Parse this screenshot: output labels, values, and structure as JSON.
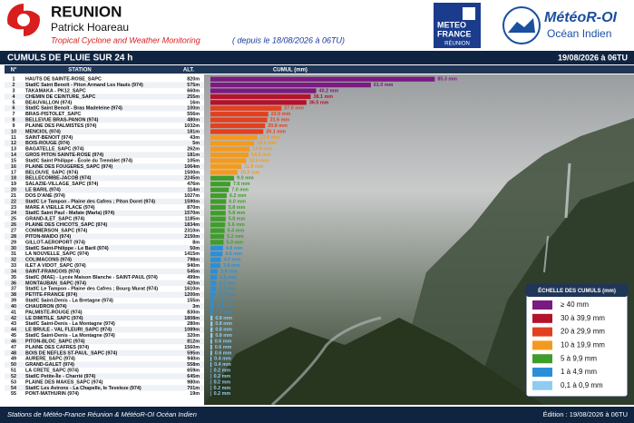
{
  "header": {
    "title": "REUNION",
    "author": "Patrick Hoareau",
    "subtitle": "Tropical Cyclone and Weather Monitoring",
    "period": "( depuis le 18/08/2026 à 06TU)",
    "logo_left": [
      "METEO",
      "FRANCE",
      "RÉUNION"
    ],
    "logo_right": [
      "MétéoR-OI",
      "Océan Indien"
    ]
  },
  "table": {
    "title": "CUMULS DE PLUIE SUR 24 h",
    "date": "19/08/2026 à 06TU",
    "columns": [
      "N°",
      "STATION",
      "ALT.",
      "CUMUL (mm)"
    ],
    "rows": [
      {
        "n": "1",
        "station": "HAUTS DE SAINTE-ROSE_SAPC",
        "alt": "820m",
        "value": 85.3,
        "value_label": "85.3 mm",
        "color": "#7b1a80"
      },
      {
        "n": "2",
        "station": "StatIC Saint Benoît - Piton Armand Les Hauts (974)",
        "alt": "575m",
        "value": 61.0,
        "value_label": "61.0 mm",
        "color": "#7b1a80"
      },
      {
        "n": "3",
        "station": "TAKAMAKA - PK12_SAPC",
        "alt": "660m",
        "value": 40.2,
        "value_label": "40.2 mm",
        "color": "#7b1a80"
      },
      {
        "n": "4",
        "station": "CHEMIN DE CEINTURE_SAPC",
        "alt": "255m",
        "value": 38.1,
        "value_label": "38.1 mm",
        "color": "#b5122b"
      },
      {
        "n": "5",
        "station": "BEAUVALLON (974)",
        "alt": "16m",
        "value": 36.5,
        "value_label": "36.5 mm",
        "color": "#b5122b"
      },
      {
        "n": "6",
        "station": "StatIC Saint Benoît - Bras Madeleine (974)",
        "alt": "100m",
        "value": 27.0,
        "value_label": "27.0 mm",
        "color": "#e2401f"
      },
      {
        "n": "7",
        "station": "BRAS-PISTOLET_SAPC",
        "alt": "556m",
        "value": 22.0,
        "value_label": "22.0 mm",
        "color": "#e2401f"
      },
      {
        "n": "8",
        "station": "BELLEVUE BRAS-PANON (974)",
        "alt": "480m",
        "value": 21.6,
        "value_label": "21.6 mm",
        "color": "#e2401f"
      },
      {
        "n": "9",
        "station": "PLAINE DES PALMISTES (974)",
        "alt": "1032m",
        "value": 20.8,
        "value_label": "20.8 mm",
        "color": "#e2401f"
      },
      {
        "n": "10",
        "station": "MENCIOL (974)",
        "alt": "181m",
        "value": 20.1,
        "value_label": "20.1 mm",
        "color": "#e2401f"
      },
      {
        "n": "11",
        "station": "SAINT-BENOIT (974)",
        "alt": "43m",
        "value": 17.8,
        "value_label": "17.8 mm",
        "color": "#f39a1e"
      },
      {
        "n": "12",
        "station": "BOIS-ROUGE (974)",
        "alt": "5m",
        "value": 16.6,
        "value_label": "16.6 mm",
        "color": "#f39a1e"
      },
      {
        "n": "13",
        "station": "BAGATELLE_SAPC (974)",
        "alt": "262m",
        "value": 14.9,
        "value_label": "14.9 mm",
        "color": "#f39a1e"
      },
      {
        "n": "14",
        "station": "GROS PITON SAINTE-ROSE (974)",
        "alt": "181m",
        "value": 14.5,
        "value_label": "14.5 mm",
        "color": "#f39a1e"
      },
      {
        "n": "15",
        "station": "StatIC Saint Philippe - École du Tremblet (974)",
        "alt": "105m",
        "value": 13.6,
        "value_label": "13.6 mm",
        "color": "#f39a1e"
      },
      {
        "n": "16",
        "station": "PLAINE DES FOUGERES_SAPC (974)",
        "alt": "1064m",
        "value": 11.8,
        "value_label": "11.8 mm",
        "color": "#f39a1e"
      },
      {
        "n": "17",
        "station": "BELOUVE_SAPC (974)",
        "alt": "1500m",
        "value": 10.3,
        "value_label": "10.3 mm",
        "color": "#f39a1e"
      },
      {
        "n": "18",
        "station": "BELLECOMBE-JACOB (974)",
        "alt": "2245m",
        "value": 9.0,
        "value_label": "9.0 mm",
        "color": "#3f9d2c"
      },
      {
        "n": "19",
        "station": "SALAZIE-VILLAGE_SAPC (974)",
        "alt": "476m",
        "value": 7.6,
        "value_label": "7.6 mm",
        "color": "#3f9d2c"
      },
      {
        "n": "20",
        "station": "LE BARIL (974)",
        "alt": "114m",
        "value": 7.0,
        "value_label": "7.0 mm",
        "color": "#3f9d2c"
      },
      {
        "n": "21",
        "station": "DOS D'ANE (974)",
        "alt": "1027m",
        "value": 6.2,
        "value_label": "6.2 mm",
        "color": "#3f9d2c"
      },
      {
        "n": "22",
        "station": "StatIC Le Tampon - Plaine des Cafres ; Piton Doret (974)",
        "alt": "1590m",
        "value": 6.0,
        "value_label": "6.0 mm",
        "color": "#3f9d2c"
      },
      {
        "n": "23",
        "station": "MARE A VIEILLE PLACE (974)",
        "alt": "870m",
        "value": 5.8,
        "value_label": "5.8 mm",
        "color": "#3f9d2c"
      },
      {
        "n": "24",
        "station": "StatIC Saint Paul - Mafate (Marla) (974)",
        "alt": "1570m",
        "value": 5.8,
        "value_label": "5.8 mm",
        "color": "#3f9d2c"
      },
      {
        "n": "25",
        "station": "GRAND-ILET_SAPC (974)",
        "alt": "1185m",
        "value": 5.8,
        "value_label": "5.8 mm",
        "color": "#3f9d2c"
      },
      {
        "n": "26",
        "station": "PLAINE DES CHICOTS_SAPC (974)",
        "alt": "1834m",
        "value": 5.6,
        "value_label": "5.6 mm",
        "color": "#3f9d2c"
      },
      {
        "n": "27",
        "station": "COMMERSON_SAPC (974)",
        "alt": "2310m",
        "value": 5.4,
        "value_label": "5.4 mm",
        "color": "#3f9d2c"
      },
      {
        "n": "28",
        "station": "PITON-MAIDO (974)",
        "alt": "2150m",
        "value": 5.2,
        "value_label": "5.2 mm",
        "color": "#3f9d2c"
      },
      {
        "n": "29",
        "station": "GILLOT-AEROPORT (974)",
        "alt": "8m",
        "value": 5.0,
        "value_label": "5.0 mm",
        "color": "#3f9d2c"
      },
      {
        "n": "30",
        "station": "StatIC Saint-Philippe - Le Baril (974)",
        "alt": "50m",
        "value": 4.8,
        "value_label": "4.8 mm",
        "color": "#2a8fd8"
      },
      {
        "n": "31",
        "station": "LA NOUVELLE_SAPC (974)",
        "alt": "1415m",
        "value": 4.6,
        "value_label": "4.6 mm",
        "color": "#2a8fd8"
      },
      {
        "n": "32",
        "station": "COLIMACONS (974)",
        "alt": "798m",
        "value": 4.0,
        "value_label": "4.0 mm",
        "color": "#2a8fd8"
      },
      {
        "n": "33",
        "station": "ILET A VIDOT_SAPC (974)",
        "alt": "940m",
        "value": 3.8,
        "value_label": "3.8 mm",
        "color": "#2a8fd8"
      },
      {
        "n": "34",
        "station": "SAINT-FRANCOIS (974)",
        "alt": "545m",
        "value": 2.8,
        "value_label": "2.8 mm",
        "color": "#2a8fd8"
      },
      {
        "n": "35",
        "station": "StatIC (MAE) - Lycée Maison Blanche - SAINT-PAUL (974)",
        "alt": "499m",
        "value": 2.5,
        "value_label": "2.5 mm",
        "color": "#2a8fd8"
      },
      {
        "n": "36",
        "station": "MONTAUBAN_SAPC (974)",
        "alt": "420m",
        "value": 2.2,
        "value_label": "2.2 mm",
        "color": "#2a8fd8"
      },
      {
        "n": "37",
        "station": "StatIC Le Tampon - Plaine des Cafres ; Bourg Murat (974)",
        "alt": "1610m",
        "value": 2.2,
        "value_label": "2.2 mm",
        "color": "#2a8fd8"
      },
      {
        "n": "38",
        "station": "PETITE-FRANCE (974)",
        "alt": "1200m",
        "value": 2.0,
        "value_label": "2.0 mm",
        "color": "#2a8fd8"
      },
      {
        "n": "39",
        "station": "StatIC Saint-Denis - La Bretagne (974)",
        "alt": "155m",
        "value": 1.4,
        "value_label": "1.4 mm",
        "color": "#2a8fd8"
      },
      {
        "n": "40",
        "station": "CHAUDRON (974)",
        "alt": "3m",
        "value": 1.4,
        "value_label": "1.4 mm",
        "color": "#2a8fd8"
      },
      {
        "n": "41",
        "station": "PALMISTE-ROUGE (974)",
        "alt": "830m",
        "value": 1.0,
        "value_label": "1.0 mm",
        "color": "#2a8fd8"
      },
      {
        "n": "42",
        "station": "LE DIMITILE_SAPC (974)",
        "alt": "1808m",
        "value": 0.8,
        "value_label": "0.8 mm",
        "color": "#8fcdf0"
      },
      {
        "n": "43",
        "station": "StatIC Saint-Denis - La Montagne (974)",
        "alt": "280m",
        "value": 0.8,
        "value_label": "0.8 mm",
        "color": "#8fcdf0"
      },
      {
        "n": "44",
        "station": "LE BRULE - VAL FLEURI_SAPC (974)",
        "alt": "1089m",
        "value": 0.8,
        "value_label": "0.8 mm",
        "color": "#8fcdf0"
      },
      {
        "n": "45",
        "station": "StatIC Saint-Denis - La Montagne (974)",
        "alt": "320m",
        "value": 0.8,
        "value_label": "0.8 mm",
        "color": "#8fcdf0"
      },
      {
        "n": "46",
        "station": "PITON-BLOC_SAPC (974)",
        "alt": "812m",
        "value": 0.6,
        "value_label": "0.6 mm",
        "color": "#8fcdf0"
      },
      {
        "n": "47",
        "station": "PLAINE DES CAFRES (974)",
        "alt": "1560m",
        "value": 0.6,
        "value_label": "0.6 mm",
        "color": "#8fcdf0"
      },
      {
        "n": "48",
        "station": "BOIS DE NEFLES ST-PAUL_SAPC (974)",
        "alt": "595m",
        "value": 0.6,
        "value_label": "0.6 mm",
        "color": "#8fcdf0"
      },
      {
        "n": "49",
        "station": "AURERE_SAPC (974)",
        "alt": "940m",
        "value": 0.4,
        "value_label": "0.4 mm",
        "color": "#8fcdf0"
      },
      {
        "n": "50",
        "station": "GRAND-GALET (974)",
        "alt": "558m",
        "value": 0.4,
        "value_label": "0.4 mm",
        "color": "#8fcdf0"
      },
      {
        "n": "51",
        "station": "LA CRETE_SAPC (974)",
        "alt": "659m",
        "value": 0.2,
        "value_label": "0.2 mm",
        "color": "#8fcdf0"
      },
      {
        "n": "52",
        "station": "StatIC Petite-Île - Charrié (974)",
        "alt": "645m",
        "value": 0.2,
        "value_label": "0.2 mm",
        "color": "#8fcdf0"
      },
      {
        "n": "53",
        "station": "PLAINE DES MAKES_SAPC (974)",
        "alt": "980m",
        "value": 0.2,
        "value_label": "0.2 mm",
        "color": "#8fcdf0"
      },
      {
        "n": "54",
        "station": "StatIC Les Avirons - La Chapelle, le Teveleze (974)",
        "alt": "701m",
        "value": 0.2,
        "value_label": "0.2 mm",
        "color": "#8fcdf0"
      },
      {
        "n": "55",
        "station": "PONT-MATHURIN (974)",
        "alt": "19m",
        "value": 0.2,
        "value_label": "0.2 mm",
        "color": "#8fcdf0"
      }
    ]
  },
  "legend": {
    "title": "ÉCHELLE DES CUMULS (mm)",
    "items": [
      {
        "label": "≥ 40 mm",
        "color": "#7b1a80"
      },
      {
        "label": "30 à 39,9 mm",
        "color": "#b5122b"
      },
      {
        "label": "20 à 29,9 mm",
        "color": "#e2401f"
      },
      {
        "label": "10 à 19,9 mm",
        "color": "#f39a1e"
      },
      {
        "label": "5 à 9,9 mm",
        "color": "#3f9d2c"
      },
      {
        "label": "1 à 4,9 mm",
        "color": "#2a8fd8"
      },
      {
        "label": "0,1 à 0,9 mm",
        "color": "#8fcdf0"
      }
    ]
  },
  "footer": {
    "left": "Stations de Météo-France Réunion & MétéoR-OI Océan Indien",
    "right": "Édition : 19/08/2026 à 06TU"
  }
}
